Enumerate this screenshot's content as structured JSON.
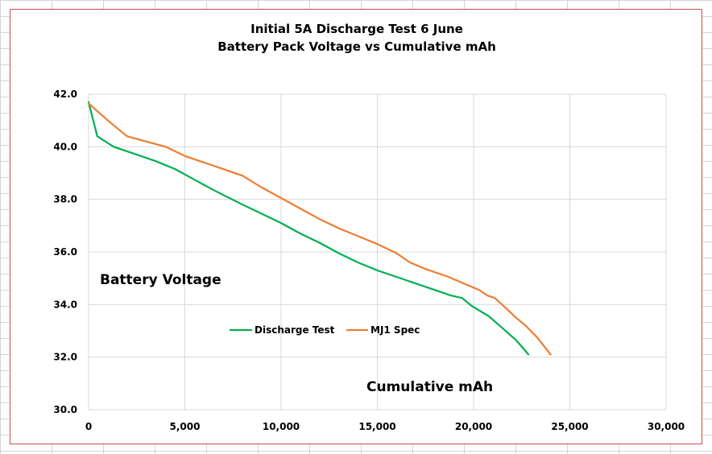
{
  "chart_data": {
    "type": "line",
    "title": "Initial 5A Discharge Test  6 June",
    "subtitle": "Battery Pack Voltage vs Cumulative mAh",
    "xlabel": "Cumulative mAh",
    "ylabel": "Battery Voltage",
    "xlim": [
      0,
      30000
    ],
    "ylim": [
      30.0,
      42.0
    ],
    "x_ticks": [
      "0",
      "5,000",
      "10,000",
      "15,000",
      "20,000",
      "25,000",
      "30,000"
    ],
    "x_tick_values": [
      0,
      5000,
      10000,
      15000,
      20000,
      25000,
      30000
    ],
    "y_ticks": [
      "30.0",
      "32.0",
      "34.0",
      "36.0",
      "38.0",
      "40.0",
      "42.0"
    ],
    "y_tick_values": [
      30,
      32,
      34,
      36,
      38,
      40,
      42
    ],
    "grid": true,
    "legend_position": "bottom-center",
    "series": [
      {
        "name": "Discharge Test",
        "color": "#00b050",
        "points": [
          [
            0,
            41.7
          ],
          [
            450,
            40.4
          ],
          [
            1300,
            40.0
          ],
          [
            2500,
            39.7
          ],
          [
            3500,
            39.45
          ],
          [
            4500,
            39.15
          ],
          [
            5500,
            38.75
          ],
          [
            6500,
            38.35
          ],
          [
            8000,
            37.8
          ],
          [
            9000,
            37.45
          ],
          [
            10000,
            37.1
          ],
          [
            11000,
            36.7
          ],
          [
            12000,
            36.35
          ],
          [
            13000,
            35.95
          ],
          [
            14000,
            35.6
          ],
          [
            15000,
            35.3
          ],
          [
            16000,
            35.05
          ],
          [
            16800,
            34.85
          ],
          [
            17800,
            34.6
          ],
          [
            18800,
            34.35
          ],
          [
            19400,
            34.25
          ],
          [
            19900,
            33.95
          ],
          [
            20800,
            33.55
          ],
          [
            21500,
            33.1
          ],
          [
            22200,
            32.65
          ],
          [
            22850,
            32.1
          ]
        ]
      },
      {
        "name": "MJ1 Spec",
        "color": "#ed7d31",
        "points": [
          [
            0,
            41.65
          ],
          [
            1000,
            41.0
          ],
          [
            2000,
            40.4
          ],
          [
            3000,
            40.2
          ],
          [
            4000,
            40.0
          ],
          [
            5000,
            39.65
          ],
          [
            6000,
            39.4
          ],
          [
            7000,
            39.15
          ],
          [
            8000,
            38.9
          ],
          [
            9000,
            38.45
          ],
          [
            10000,
            38.05
          ],
          [
            11000,
            37.65
          ],
          [
            12000,
            37.25
          ],
          [
            13000,
            36.9
          ],
          [
            14000,
            36.6
          ],
          [
            15000,
            36.3
          ],
          [
            16000,
            35.95
          ],
          [
            16700,
            35.6
          ],
          [
            17500,
            35.35
          ],
          [
            18700,
            35.05
          ],
          [
            19500,
            34.8
          ],
          [
            20300,
            34.55
          ],
          [
            20700,
            34.35
          ],
          [
            21100,
            34.25
          ],
          [
            21700,
            33.85
          ],
          [
            22200,
            33.5
          ],
          [
            22700,
            33.2
          ],
          [
            23300,
            32.75
          ],
          [
            24000,
            32.1
          ]
        ]
      }
    ]
  }
}
